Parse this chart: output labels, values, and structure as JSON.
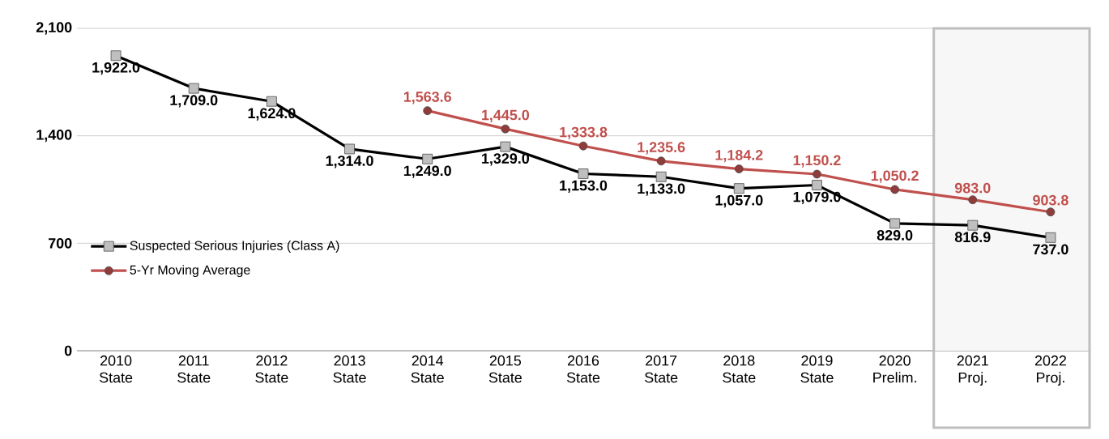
{
  "chart_data": {
    "type": "line",
    "categories": [
      "2010 State",
      "2011 State",
      "2012 State",
      "2013 State",
      "2014 State",
      "2015 State",
      "2016 State",
      "2017 State",
      "2018 State",
      "2019 State",
      "2020 Prelim.",
      "2021 Proj.",
      "2022 Proj."
    ],
    "series": [
      {
        "name": "Suspected Serious Injuries (Class A)",
        "color": "#000000",
        "marker": "square",
        "values": [
          1922.0,
          1709.0,
          1624.0,
          1314.0,
          1249.0,
          1329.0,
          1153.0,
          1133.0,
          1057.0,
          1079.0,
          829.0,
          816.9,
          737.0
        ],
        "value_labels": [
          "1,922.0",
          "1,709.0",
          "1,624.0",
          "1,314.0",
          "1,249.0",
          "1,329.0",
          "1,153.0",
          "1,133.0",
          "1,057.0",
          "1,079.0",
          "829.0",
          "816.9",
          "737.0"
        ]
      },
      {
        "name": "5-Yr Moving Average",
        "color": "#c0504d",
        "marker": "circle",
        "values": [
          null,
          null,
          null,
          null,
          1563.6,
          1445.0,
          1333.8,
          1235.6,
          1184.2,
          1150.2,
          1050.2,
          983.0,
          903.8
        ],
        "value_labels": [
          null,
          null,
          null,
          null,
          "1,563.6",
          "1,445.0",
          "1,333.8",
          "1,235.6",
          "1,184.2",
          "1,150.2",
          "1,050.2",
          "983.0",
          "903.8"
        ]
      }
    ],
    "ylim": [
      0,
      2100
    ],
    "yticks": [
      0,
      700,
      {
        "value": 1400,
        "label": "1,400"
      },
      {
        "value": 2100,
        "label": "2,100"
      }
    ],
    "grid": "y",
    "legend": "bottom left",
    "bands": [
      {
        "axis": "x",
        "from": "2021 Proj.",
        "to": "2022 Proj.",
        "color": "#f7f7f7"
      }
    ]
  }
}
